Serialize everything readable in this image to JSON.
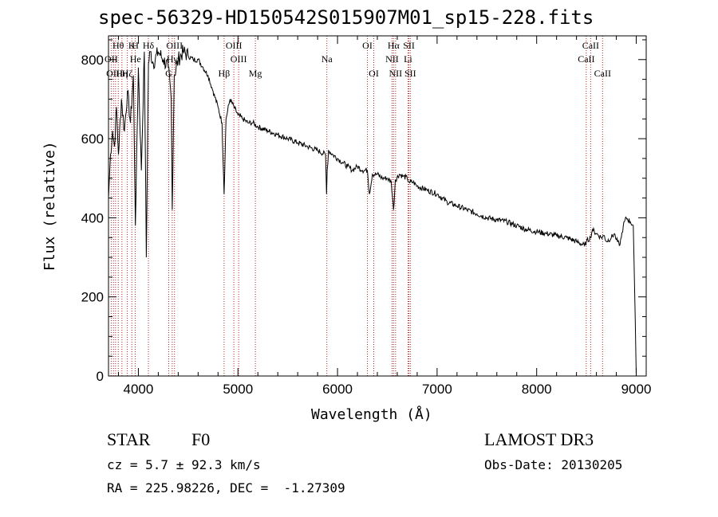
{
  "chart_data": {
    "type": "line",
    "title": "spec-56329-HD150542S015907M01_sp15-228.fits",
    "xlabel": "Wavelength (Å)",
    "ylabel": "Flux (relative)",
    "xlim": [
      3700,
      9100
    ],
    "ylim": [
      0,
      860
    ],
    "xticks": [
      4000,
      5000,
      6000,
      7000,
      8000,
      9000
    ],
    "yticks": [
      0,
      200,
      400,
      600,
      800
    ],
    "series": [
      {
        "name": "spectrum",
        "x": [
          3700,
          3720,
          3740,
          3760,
          3780,
          3800,
          3830,
          3860,
          3890,
          3920,
          3950,
          3970,
          4000,
          4030,
          4060,
          4080,
          4101,
          4120,
          4150,
          4200,
          4250,
          4300,
          4330,
          4340,
          4360,
          4400,
          4450,
          4500,
          4550,
          4600,
          4650,
          4700,
          4750,
          4800,
          4840,
          4861,
          4880,
          4920,
          4960,
          5000,
          5050,
          5100,
          5150,
          5200,
          5300,
          5400,
          5500,
          5600,
          5700,
          5800,
          5880,
          5890,
          5896,
          5910,
          5950,
          6000,
          6050,
          6100,
          6150,
          6200,
          6250,
          6300,
          6320,
          6350,
          6400,
          6450,
          6500,
          6540,
          6563,
          6580,
          6620,
          6660,
          6700,
          6720,
          6760,
          6800,
          6900,
          7000,
          7100,
          7200,
          7300,
          7400,
          7500,
          7600,
          7700,
          7800,
          7900,
          8000,
          8100,
          8200,
          8300,
          8400,
          8480,
          8500,
          8540,
          8560,
          8600,
          8650,
          8680,
          8700,
          8750,
          8780,
          8800,
          8830,
          8850,
          8870,
          8900,
          8940,
          8970,
          8990,
          9000
        ],
        "y": [
          450,
          560,
          620,
          580,
          680,
          560,
          700,
          620,
          720,
          640,
          760,
          380,
          780,
          520,
          820,
          300,
          790,
          820,
          790,
          820,
          800,
          780,
          700,
          420,
          760,
          800,
          820,
          810,
          800,
          800,
          780,
          760,
          720,
          680,
          640,
          460,
          650,
          700,
          680,
          660,
          650,
          640,
          640,
          630,
          620,
          610,
          600,
          590,
          580,
          570,
          560,
          460,
          520,
          570,
          560,
          550,
          540,
          530,
          520,
          530,
          520,
          520,
          460,
          510,
          510,
          500,
          500,
          490,
          420,
          495,
          510,
          505,
          500,
          490,
          490,
          480,
          470,
          460,
          440,
          430,
          420,
          410,
          400,
          395,
          390,
          380,
          370,
          365,
          360,
          355,
          350,
          340,
          330,
          340,
          350,
          370,
          360,
          350,
          355,
          340,
          350,
          360,
          345,
          330,
          350,
          380,
          400,
          390,
          380,
          140,
          0
        ]
      }
    ],
    "line_labels": [
      {
        "label": "Hθ",
        "x": 3798,
        "row": 1
      },
      {
        "label": "OII",
        "x": 3727,
        "row": 2
      },
      {
        "label": "OIII",
        "x": 3760,
        "row": 3
      },
      {
        "label": "K",
        "x": 3934,
        "row": 1
      },
      {
        "label": "He",
        "x": 3970,
        "row": 2
      },
      {
        "label": "Hη",
        "x": 3835,
        "row": 3
      },
      {
        "label": "H",
        "x": 3969,
        "row": 1
      },
      {
        "label": "Hζ",
        "x": 3889,
        "row": 3
      },
      {
        "label": "Hδ",
        "x": 4101,
        "row": 1
      },
      {
        "label": "Hγ",
        "x": 4340,
        "row": 2
      },
      {
        "label": "G",
        "x": 4305,
        "row": 3
      },
      {
        "label": "OIII",
        "x": 4363,
        "row": 1
      },
      {
        "label": "Hβ",
        "x": 4861,
        "row": 3
      },
      {
        "label": "OIII",
        "x": 4959,
        "row": 1
      },
      {
        "label": "OIII",
        "x": 5007,
        "row": 2
      },
      {
        "label": "Mg",
        "x": 5175,
        "row": 3
      },
      {
        "label": "Na",
        "x": 5893,
        "row": 2
      },
      {
        "label": "OI",
        "x": 6300,
        "row": 1
      },
      {
        "label": "OI",
        "x": 6364,
        "row": 3
      },
      {
        "label": "Hα",
        "x": 6563,
        "row": 1
      },
      {
        "label": "NII",
        "x": 6548,
        "row": 2
      },
      {
        "label": "NII",
        "x": 6583,
        "row": 3
      },
      {
        "label": "SII",
        "x": 6717,
        "row": 1
      },
      {
        "label": "Li",
        "x": 6708,
        "row": 2
      },
      {
        "label": "SII",
        "x": 6731,
        "row": 3
      },
      {
        "label": "CaII",
        "x": 8542,
        "row": 1
      },
      {
        "label": "CaII",
        "x": 8498,
        "row": 2
      },
      {
        "label": "CaII",
        "x": 8662,
        "row": 3
      }
    ],
    "line_marks": [
      3727,
      3750,
      3771,
      3798,
      3835,
      3889,
      3934,
      3969,
      4101,
      4305,
      4340,
      4363,
      4861,
      4959,
      5007,
      5175,
      5893,
      6300,
      6364,
      6548,
      6563,
      6583,
      6708,
      6717,
      6731,
      8498,
      8542,
      8662
    ],
    "line_color": "#b22222"
  },
  "info": {
    "object_type": "STAR",
    "subclass": "F0",
    "survey": "LAMOST DR3",
    "cz": "cz = 5.7 ± 92.3 km/s",
    "obs_date": "Obs-Date: 20130205",
    "coords": "RA = 225.98226, DEC =  -1.27309"
  }
}
